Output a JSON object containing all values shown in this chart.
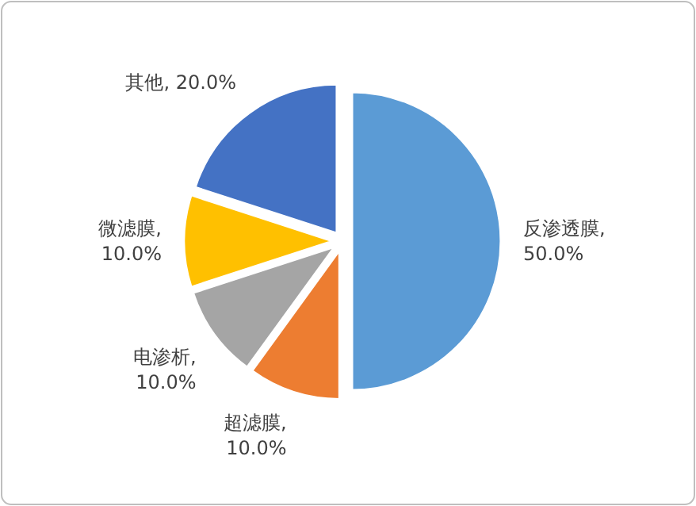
{
  "chart_data": {
    "type": "pie",
    "categories": [
      "反渗透膜",
      "超滤膜",
      "电渗析",
      "微滤膜",
      "其他"
    ],
    "values": [
      50,
      10,
      10,
      10,
      20
    ],
    "value_labels": [
      ", 50.0%",
      ", 10.0%",
      ", 10.0%",
      ", 10.0%",
      ", 20.0%"
    ],
    "colors": [
      "#5b9bd5",
      "#ed7d31",
      "#a5a5a5",
      "#ffc000",
      "#4472c4"
    ],
    "legend": false
  }
}
